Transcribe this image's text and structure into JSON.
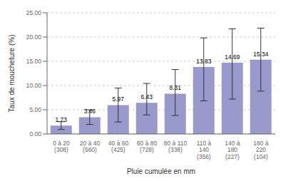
{
  "chart_data": {
    "type": "bar",
    "categories": [
      "0 à 20\n(308)",
      "20 à 40\n(560)",
      "40 à 60\n(425)",
      "60 à 80\n(728)",
      "80 à 110\n(338)",
      "110 à\n140\n(356)",
      "140 à\n180\n(227)",
      "180 à\n220\n(104)"
    ],
    "values": [
      1.73,
      3.46,
      5.97,
      6.43,
      8.31,
      13.83,
      14.69,
      15.34
    ],
    "error_low": [
      0.8,
      1.5,
      3.5,
      2.5,
      4.5,
      7.0,
      7.5,
      6.5
    ],
    "error_high": [
      0.8,
      1.5,
      3.5,
      4.0,
      5.0,
      6.0,
      7.0,
      6.5
    ],
    "color": "#9999cc",
    "xlabel": "Pluie cumulée en mm",
    "ylabel": "Taux de moucheture (%)",
    "ylim": [
      0,
      25
    ],
    "yticks": [
      {
        "value": 0.0,
        "label": "0.00"
      },
      {
        "value": 5.0,
        "label": "5.00"
      },
      {
        "value": 10.0,
        "label": "10.00"
      },
      {
        "value": 15.0,
        "label": "15.00"
      },
      {
        "value": 20.0,
        "label": "20.00"
      },
      {
        "value": 25.0,
        "label": "25.00"
      }
    ],
    "grid": true,
    "data_labels": true
  }
}
